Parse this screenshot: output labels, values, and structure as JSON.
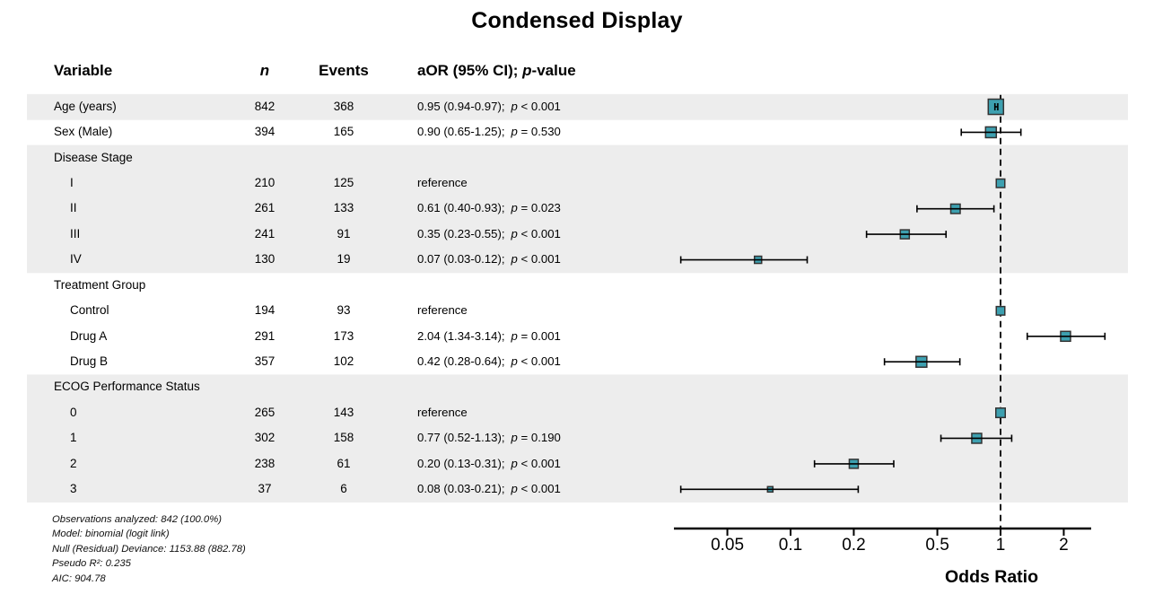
{
  "title": "Condensed Display",
  "header": {
    "variable": "Variable",
    "n": "n",
    "events": "Events",
    "estimate_prefix": "aOR (95% CI); ",
    "estimate_p": "p",
    "estimate_suffix": "-value"
  },
  "reference_label": "reference",
  "footnotes": [
    "Observations analyzed: 842 (100.0%)",
    "Model: binomial (logit link)",
    "Null (Residual) Deviance: 1153.88 (882.78)",
    "Pseudo R²: 0.235",
    "AIC: 904.78"
  ],
  "colors": {
    "marker_fill": "#3DA0B0",
    "marker_stroke": "#333333",
    "stripe": "#EDEDED",
    "line": "#000000"
  },
  "chart_data": {
    "type": "scatter",
    "subtype": "forest-plot",
    "title": "Condensed Display",
    "xlabel": "Odds Ratio",
    "x_scale": "log",
    "x_ticks": [
      "0.05",
      "0.1",
      "0.2",
      "0.5",
      "1",
      "2"
    ],
    "x_tick_values": [
      0.05,
      0.1,
      0.2,
      0.5,
      1,
      2
    ],
    "x_range": [
      0.028,
      2.7
    ],
    "reference_line": 1,
    "rows": [
      {
        "kind": "data",
        "label": "Age (years)",
        "indent": false,
        "shade": true,
        "n": "842",
        "events": "368",
        "est": "0.95 (0.94-0.97);",
        "p": "< 0.001",
        "or": 0.95,
        "lo": 0.94,
        "hi": 0.97,
        "size": 17
      },
      {
        "kind": "data",
        "label": "Sex (Male)",
        "indent": false,
        "shade": false,
        "n": "394",
        "events": "165",
        "est": "0.90 (0.65-1.25);",
        "p": "= 0.530",
        "or": 0.9,
        "lo": 0.65,
        "hi": 1.25,
        "size": 12
      },
      {
        "kind": "group",
        "label": "Disease Stage",
        "indent": false,
        "shade": true
      },
      {
        "kind": "ref",
        "label": "I",
        "indent": true,
        "shade": true,
        "n": "210",
        "events": "125",
        "or": 1,
        "size": 9.5
      },
      {
        "kind": "data",
        "label": "II",
        "indent": true,
        "shade": true,
        "n": "261",
        "events": "133",
        "est": "0.61 (0.40-0.93);",
        "p": "= 0.023",
        "or": 0.61,
        "lo": 0.4,
        "hi": 0.93,
        "size": 10.5
      },
      {
        "kind": "data",
        "label": "III",
        "indent": true,
        "shade": true,
        "n": "241",
        "events": "91",
        "est": "0.35 (0.23-0.55);",
        "p": "< 0.001",
        "or": 0.35,
        "lo": 0.23,
        "hi": 0.55,
        "size": 10
      },
      {
        "kind": "data",
        "label": "IV",
        "indent": true,
        "shade": true,
        "n": "130",
        "events": "19",
        "est": "0.07 (0.03-0.12);",
        "p": "< 0.001",
        "or": 0.07,
        "lo": 0.03,
        "hi": 0.12,
        "size": 8
      },
      {
        "kind": "group",
        "label": "Treatment Group",
        "indent": false,
        "shade": false
      },
      {
        "kind": "ref",
        "label": "Control",
        "indent": true,
        "shade": false,
        "n": "194",
        "events": "93",
        "or": 1,
        "size": 9.5
      },
      {
        "kind": "data",
        "label": "Drug A",
        "indent": true,
        "shade": false,
        "n": "291",
        "events": "173",
        "est": "2.04 (1.34-3.14);",
        "p": "= 0.001",
        "or": 2.04,
        "lo": 1.34,
        "hi": 3.14,
        "size": 11
      },
      {
        "kind": "data",
        "label": "Drug B",
        "indent": true,
        "shade": false,
        "n": "357",
        "events": "102",
        "est": "0.42 (0.28-0.64);",
        "p": "< 0.001",
        "or": 0.42,
        "lo": 0.28,
        "hi": 0.64,
        "size": 12
      },
      {
        "kind": "group",
        "label": "ECOG Performance Status",
        "indent": false,
        "shade": true
      },
      {
        "kind": "ref",
        "label": "0",
        "indent": true,
        "shade": true,
        "n": "265",
        "events": "143",
        "or": 1,
        "size": 10.5
      },
      {
        "kind": "data",
        "label": "1",
        "indent": true,
        "shade": true,
        "n": "302",
        "events": "158",
        "est": "0.77 (0.52-1.13);",
        "p": "= 0.190",
        "or": 0.77,
        "lo": 0.52,
        "hi": 1.13,
        "size": 11
      },
      {
        "kind": "data",
        "label": "2",
        "indent": true,
        "shade": true,
        "n": "238",
        "events": "61",
        "est": "0.20 (0.13-0.31);",
        "p": "< 0.001",
        "or": 0.2,
        "lo": 0.13,
        "hi": 0.31,
        "size": 10
      },
      {
        "kind": "data",
        "label": "3",
        "indent": true,
        "shade": true,
        "n": "37",
        "events": "6",
        "est": "0.08 (0.03-0.21);",
        "p": "< 0.001",
        "or": 0.08,
        "lo": 0.03,
        "hi": 0.21,
        "size": 6
      }
    ]
  }
}
